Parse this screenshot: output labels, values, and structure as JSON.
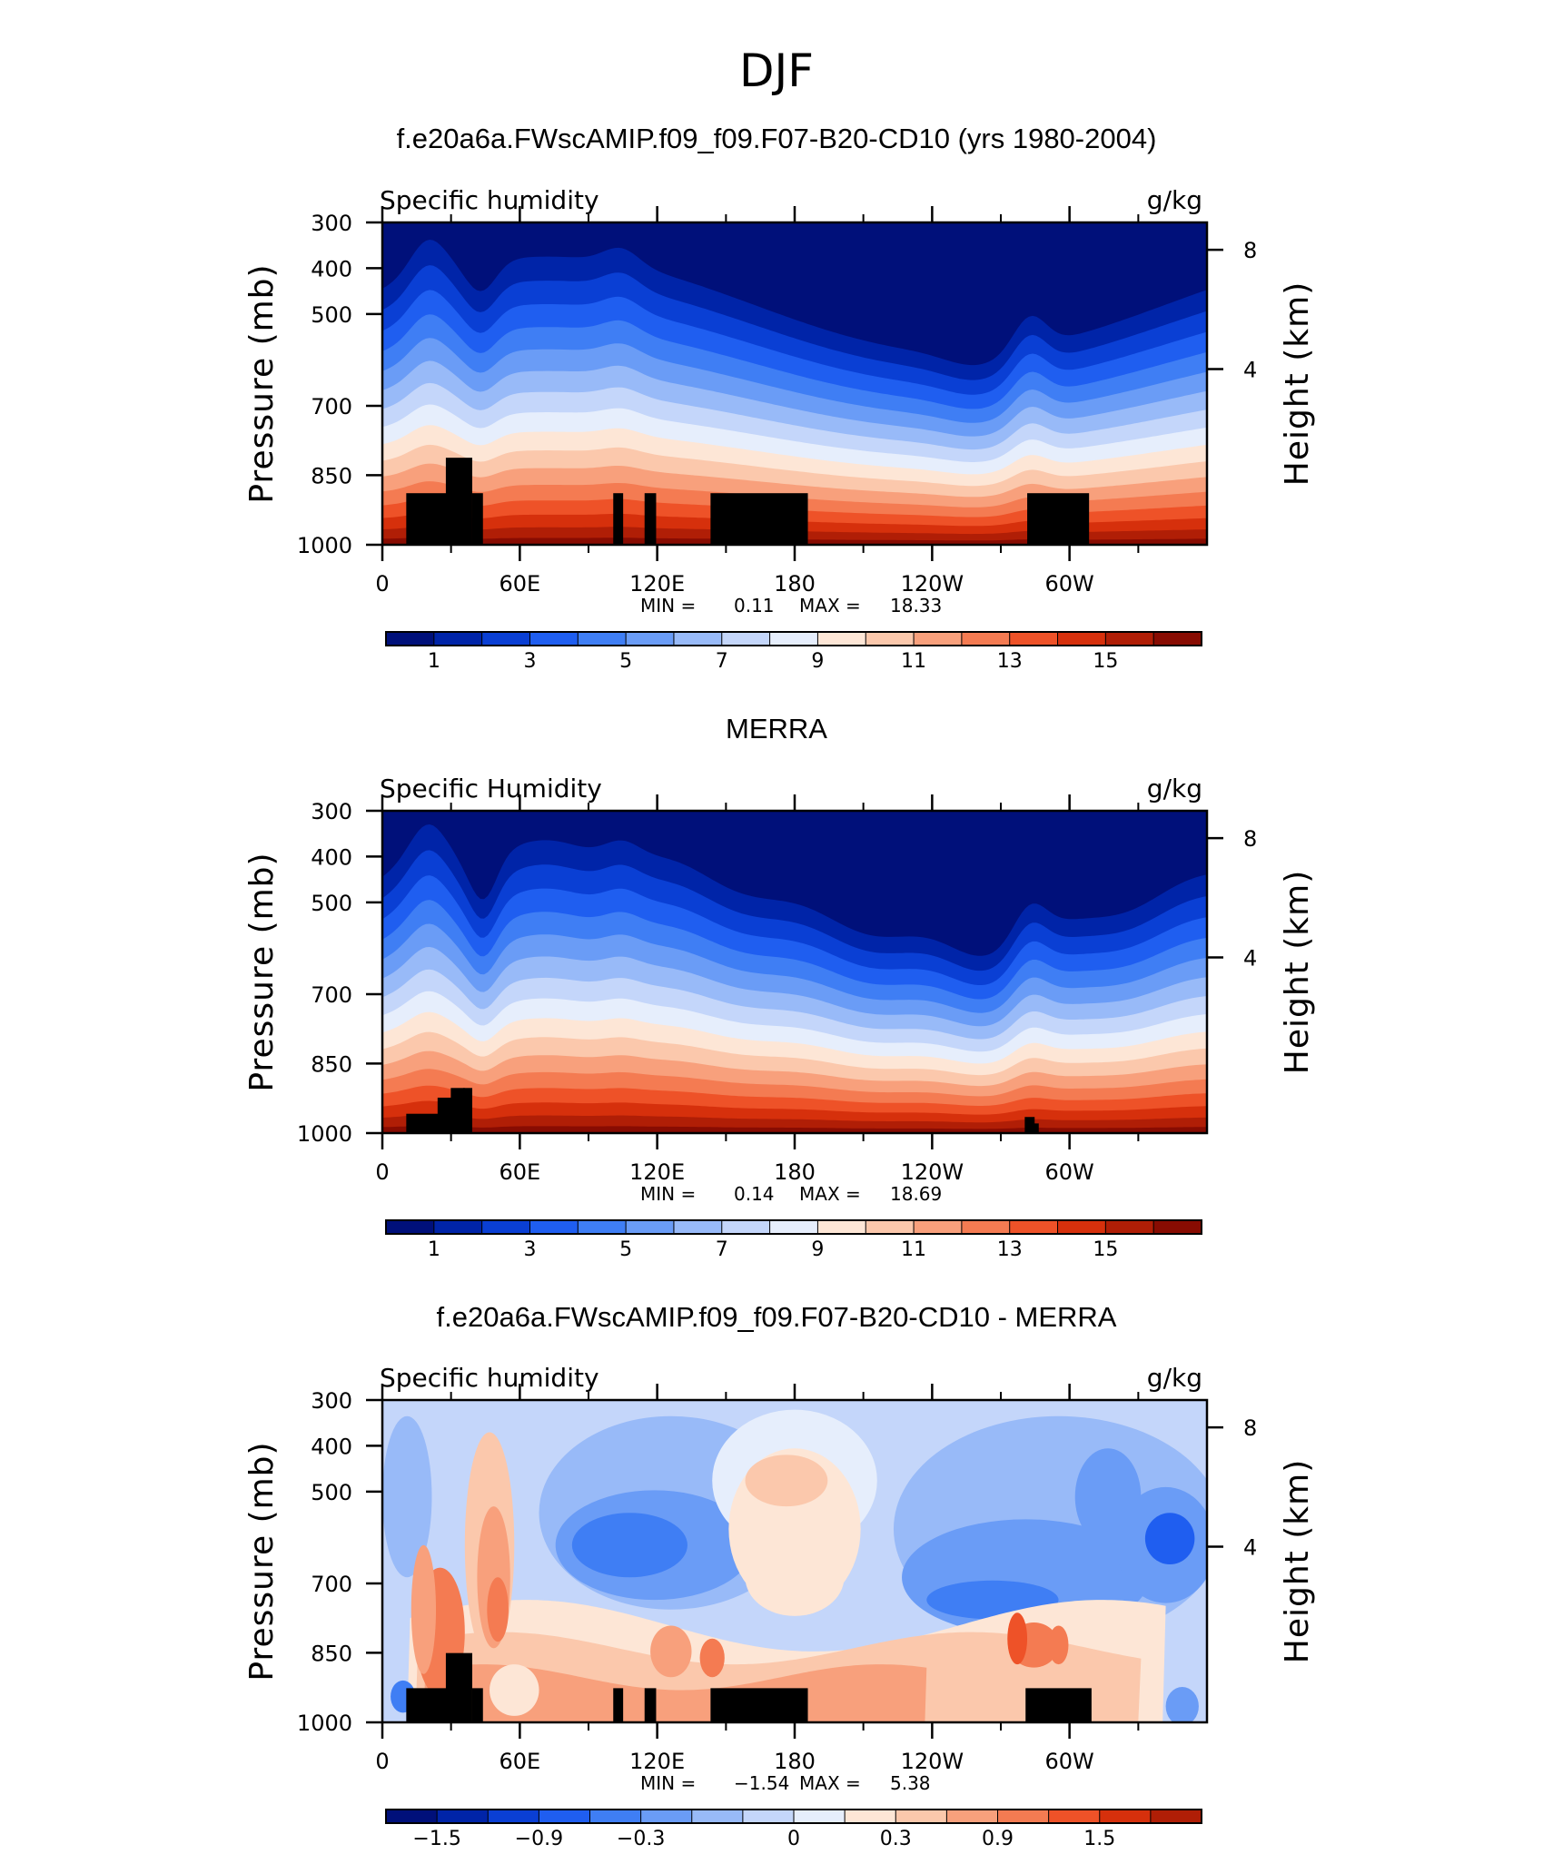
{
  "figure": {
    "title": "DJF"
  },
  "chart_data": [
    {
      "type": "heatmap",
      "title": "f.e20a6a.FWscAMIP.f09_f09.F07-B20-CD10 (yrs 1980-2004)",
      "left_label": "Specific humidity",
      "units": "g/kg",
      "ylabel": "Pressure (mb)",
      "y2label": "Height (km)",
      "x_ticks": [
        "0",
        "60E",
        "120E",
        "180",
        "120W",
        "60W"
      ],
      "y_ticks": [
        "300",
        "400",
        "500",
        "700",
        "850",
        "1000"
      ],
      "y2_ticks": [
        "8",
        "4"
      ],
      "min_label": "MIN =",
      "min": "0.11",
      "max_label": "MAX =",
      "max": "18.33",
      "colorbar_labels": [
        "1",
        "3",
        "5",
        "7",
        "9",
        "11",
        "13",
        "15"
      ],
      "colorbar_levels": [
        0,
        1,
        2,
        3,
        4,
        5,
        6,
        7,
        8,
        9,
        10,
        11,
        12,
        13,
        14,
        15,
        16
      ],
      "colors": [
        "#00107a",
        "#0024a8",
        "#0a3fd4",
        "#1f5ef0",
        "#3f7ef4",
        "#6a9cf6",
        "#98baf8",
        "#c4d6fa",
        "#e6eefc",
        "#fde6d6",
        "#fbc8ac",
        "#f8a07c",
        "#f47b52",
        "#ee5228",
        "#d6300c",
        "#b01e06",
        "#880c02"
      ]
    },
    {
      "type": "heatmap",
      "title": "MERRA",
      "left_label": "Specific Humidity",
      "units": "g/kg",
      "ylabel": "Pressure (mb)",
      "y2label": "Height (km)",
      "x_ticks": [
        "0",
        "60E",
        "120E",
        "180",
        "120W",
        "60W"
      ],
      "y_ticks": [
        "300",
        "400",
        "500",
        "700",
        "850",
        "1000"
      ],
      "y2_ticks": [
        "8",
        "4"
      ],
      "min_label": "MIN =",
      "min": "0.14",
      "max_label": "MAX =",
      "max": "18.69",
      "colorbar_labels": [
        "1",
        "3",
        "5",
        "7",
        "9",
        "11",
        "13",
        "15"
      ],
      "colorbar_levels": [
        0,
        1,
        2,
        3,
        4,
        5,
        6,
        7,
        8,
        9,
        10,
        11,
        12,
        13,
        14,
        15,
        16
      ],
      "colors": [
        "#00107a",
        "#0024a8",
        "#0a3fd4",
        "#1f5ef0",
        "#3f7ef4",
        "#6a9cf6",
        "#98baf8",
        "#c4d6fa",
        "#e6eefc",
        "#fde6d6",
        "#fbc8ac",
        "#f8a07c",
        "#f47b52",
        "#ee5228",
        "#d6300c",
        "#b01e06",
        "#880c02"
      ]
    },
    {
      "type": "heatmap",
      "title": "f.e20a6a.FWscAMIP.f09_f09.F07-B20-CD10 - MERRA",
      "left_label": "Specific humidity",
      "units": "g/kg",
      "ylabel": "Pressure (mb)",
      "y2label": "Height (km)",
      "x_ticks": [
        "0",
        "60E",
        "120E",
        "180",
        "120W",
        "60W"
      ],
      "y_ticks": [
        "300",
        "400",
        "500",
        "700",
        "850",
        "1000"
      ],
      "y2_ticks": [
        "8",
        "4"
      ],
      "min_label": "MIN =",
      "min": "−1.54",
      "max_label": "MAX =",
      "max": "5.38",
      "colorbar_labels": [
        "−1.5",
        "−0.9",
        "−0.3",
        "0",
        "0.3",
        "0.9",
        "1.5"
      ],
      "colorbar_levels": [
        -1.8,
        -1.5,
        -1.2,
        -0.9,
        -0.6,
        -0.3,
        -0.1,
        0.1,
        0.3,
        0.6,
        0.9,
        1.2,
        1.5,
        1.8,
        2.1,
        2.4
      ],
      "colors": [
        "#00107a",
        "#0024a8",
        "#0a3fd4",
        "#1f5ef0",
        "#3f7ef4",
        "#6a9cf6",
        "#98baf8",
        "#c4d6fa",
        "#e6eefc",
        "#fde6d6",
        "#fbc8ac",
        "#f8a07c",
        "#f47b52",
        "#ee5228",
        "#d6300c",
        "#b01e06"
      ]
    }
  ]
}
